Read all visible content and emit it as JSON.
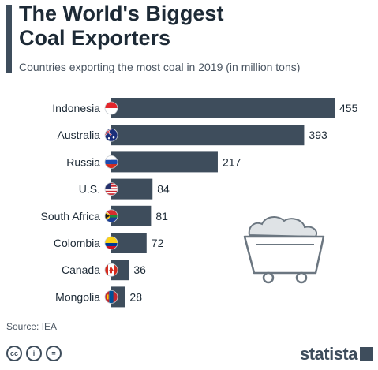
{
  "header": {
    "title": "The World's Biggest\nCoal Exporters",
    "subtitle": "Countries exporting the most coal in 2019 (in million tons)"
  },
  "footer": {
    "source": "Source: IEA",
    "brand": "statista"
  },
  "colors": {
    "bar": "#3e4d5c",
    "accent": "#3e4d5c"
  },
  "icons": [
    "cc-icon",
    "attribution-icon",
    "no-derivatives-icon",
    "mine-cart-icon",
    "statista-logo-icon"
  ],
  "chart_data": {
    "type": "bar",
    "orientation": "horizontal",
    "title": "The World's Biggest Coal Exporters",
    "subtitle": "Countries exporting the most coal in 2019 (in million tons)",
    "categories": [
      "Indonesia",
      "Australia",
      "Russia",
      "U.S.",
      "South Africa",
      "Colombia",
      "Canada",
      "Mongolia"
    ],
    "values": [
      455,
      393,
      217,
      84,
      81,
      72,
      36,
      28
    ],
    "flags": [
      "flag-indonesia-icon",
      "flag-australia-icon",
      "flag-russia-icon",
      "flag-us-icon",
      "flag-south-africa-icon",
      "flag-colombia-icon",
      "flag-canada-icon",
      "flag-mongolia-icon"
    ],
    "xlim": [
      0,
      455
    ],
    "grid": false,
    "legend": "none"
  }
}
